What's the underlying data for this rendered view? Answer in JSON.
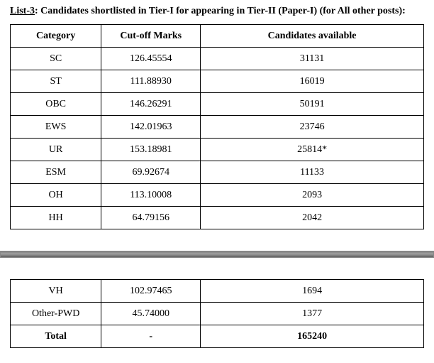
{
  "title_prefix_underlined": "List-3",
  "title_rest": ": Candidates shortlisted in Tier-I for appearing in Tier-II (Paper-I) (for All other posts):",
  "columns": {
    "category": "Category",
    "cutoff": "Cut-off Marks",
    "candidates": "Candidates available"
  },
  "rows_top": [
    {
      "category": "SC",
      "cutoff": "126.45554",
      "candidates": "31131"
    },
    {
      "category": "ST",
      "cutoff": "111.88930",
      "candidates": "16019"
    },
    {
      "category": "OBC",
      "cutoff": "146.26291",
      "candidates": "50191"
    },
    {
      "category": "EWS",
      "cutoff": "142.01963",
      "candidates": "23746"
    },
    {
      "category": "UR",
      "cutoff": "153.18981",
      "candidates": "25814*"
    },
    {
      "category": "ESM",
      "cutoff": "69.92674",
      "candidates": "11133"
    },
    {
      "category": "OH",
      "cutoff": "113.10008",
      "candidates": "2093"
    },
    {
      "category": "HH",
      "cutoff": "64.79156",
      "candidates": "2042"
    }
  ],
  "rows_bottom": [
    {
      "category": "VH",
      "cutoff": "102.97465",
      "candidates": "1694"
    },
    {
      "category": "Other-PWD",
      "cutoff": "45.74000",
      "candidates": "1377"
    }
  ],
  "total_row": {
    "category": "Total",
    "cutoff": "-",
    "candidates": "165240"
  }
}
